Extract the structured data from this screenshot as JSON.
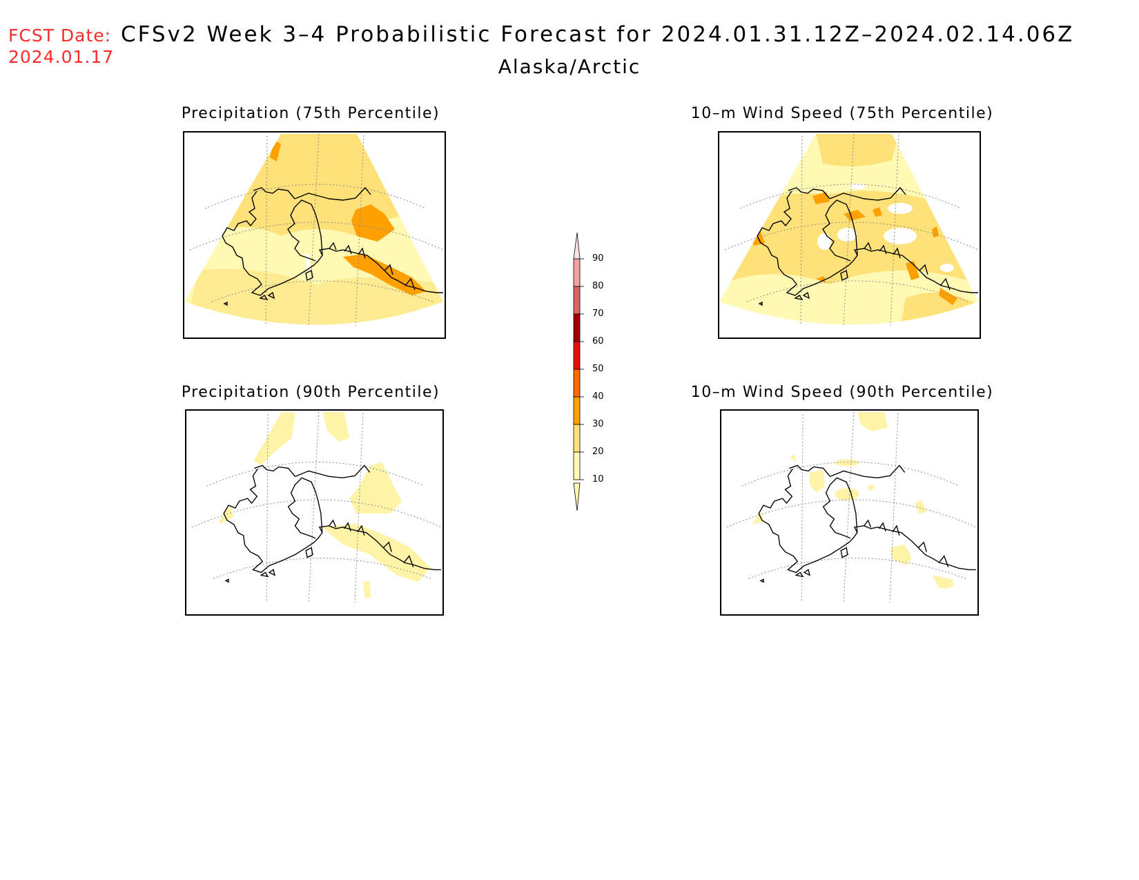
{
  "header": {
    "fcst_label": "FCST Date:",
    "fcst_date": "2024.01.17",
    "title": "CFSv2 Week 3–4 Probabilistic Forecast for 2024.01.31.12Z–2024.02.14.06Z",
    "region": "Alaska/Arctic"
  },
  "panels": [
    {
      "title": "Precipitation (75th Percentile)"
    },
    {
      "title": "10–m Wind Speed (75th Percentile)"
    },
    {
      "title": "Precipitation (90th Percentile)"
    },
    {
      "title": "10–m Wind Speed (90th Percentile)"
    }
  ],
  "colorbar": {
    "labels": [
      "90",
      "80",
      "70",
      "60",
      "50",
      "40",
      "30",
      "20",
      "10"
    ],
    "colors": [
      "#f5a0a0",
      "#de6464",
      "#9c0000",
      "#e01400",
      "#ff6a00",
      "#ffa000",
      "#ffe17a",
      "#fff9b4"
    ]
  }
}
